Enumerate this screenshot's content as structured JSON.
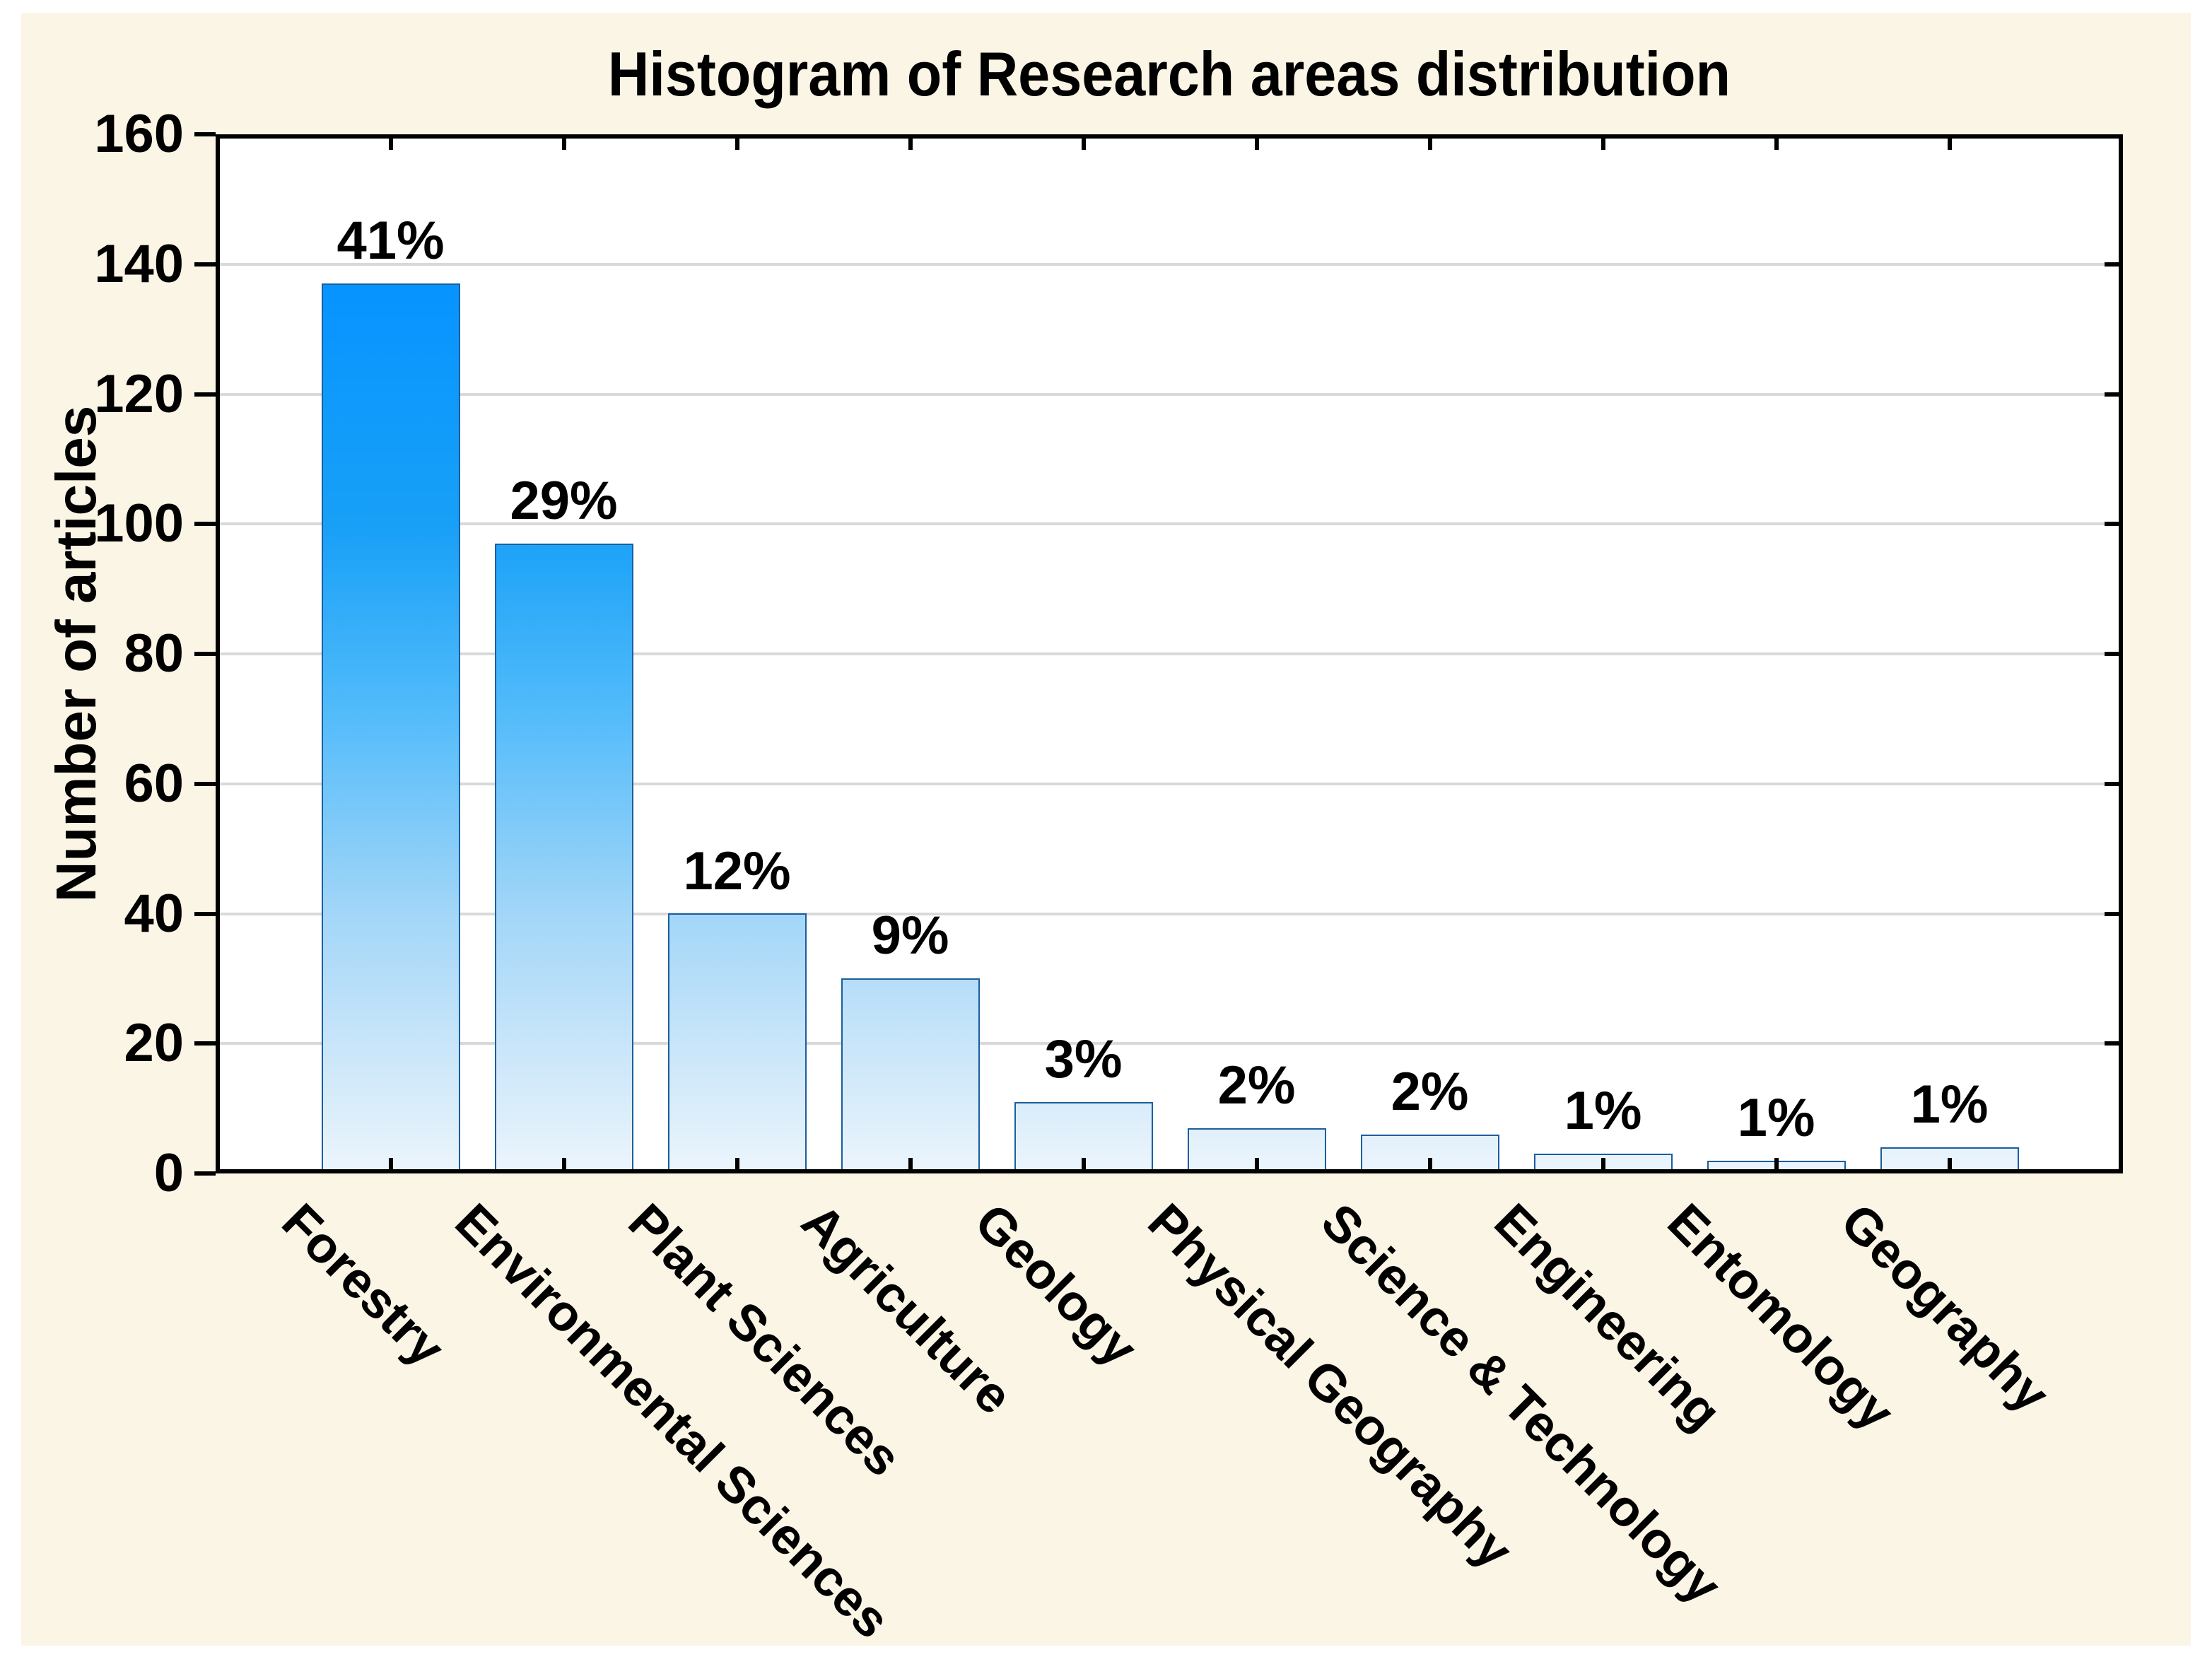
{
  "title": "Histogram of Research areas distribution",
  "y_axis": {
    "label": "Number of articles",
    "tick_labels": [
      "160",
      "140",
      "120",
      "100",
      "80",
      "60",
      "40",
      "20",
      "0"
    ]
  },
  "chart_data": {
    "type": "bar",
    "title": "Histogram of Research areas distribution",
    "xlabel": "",
    "ylabel": "Number of articles",
    "ylim": [
      0,
      160
    ],
    "ytick_step": 20,
    "grid": "horizontal",
    "legend": "none",
    "categories": [
      "Forestry",
      "Environmental Sciences",
      "Plant Sciences",
      "Agriculture",
      "Geology",
      "Physical Geography",
      "Science & Technology",
      "Engineering",
      "Entomology",
      "Geography"
    ],
    "values": [
      137,
      97,
      40,
      30,
      11,
      7,
      6,
      3,
      2,
      4
    ],
    "data_labels": [
      "41%",
      "29%",
      "12%",
      "9%",
      "3%",
      "2%",
      "2%",
      "1%",
      "1%",
      "1%"
    ],
    "colors": {
      "panel_background": "#FBF5E5",
      "plot_background": "#FFFFFF",
      "frame": "#000000",
      "gridline": "#D9D9D9",
      "bar_border": "#1B5E9E",
      "text": "#000000",
      "bar_gradient_bottom_to_top": [
        "#ECF5FC",
        "#CFE8FA",
        "#A2D6F8",
        "#4FBAFA",
        "#18A0F7",
        "#0794FF",
        "#0092FF"
      ],
      "bar_gradient_stops_pct": [
        0,
        10,
        25,
        45,
        62,
        85,
        100
      ]
    }
  }
}
